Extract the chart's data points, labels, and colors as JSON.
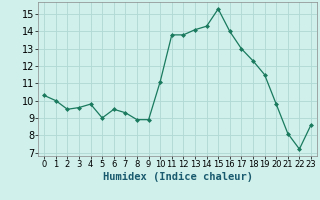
{
  "x": [
    0,
    1,
    2,
    3,
    4,
    5,
    6,
    7,
    8,
    9,
    10,
    11,
    12,
    13,
    14,
    15,
    16,
    17,
    18,
    19,
    20,
    21,
    22,
    23
  ],
  "y": [
    10.3,
    10.0,
    9.5,
    9.6,
    9.8,
    9.0,
    9.5,
    9.3,
    8.9,
    8.9,
    11.1,
    13.8,
    13.8,
    14.1,
    14.3,
    15.3,
    14.0,
    13.0,
    12.3,
    11.5,
    9.8,
    8.1,
    7.2,
    8.6
  ],
  "line_color": "#1a7a5e",
  "marker": "D",
  "marker_size": 2.0,
  "bg_color": "#cff0eb",
  "grid_color": "#b0d8d4",
  "xlabel": "Humidex (Indice chaleur)",
  "xlabel_fontsize": 7.5,
  "tick_fontsize": 7,
  "ylim": [
    6.8,
    15.7
  ],
  "xlim": [
    -0.5,
    23.5
  ],
  "yticks": [
    7,
    8,
    9,
    10,
    11,
    12,
    13,
    14,
    15
  ],
  "xticks": [
    0,
    1,
    2,
    3,
    4,
    5,
    6,
    7,
    8,
    9,
    10,
    11,
    12,
    13,
    14,
    15,
    16,
    17,
    18,
    19,
    20,
    21,
    22,
    23
  ]
}
